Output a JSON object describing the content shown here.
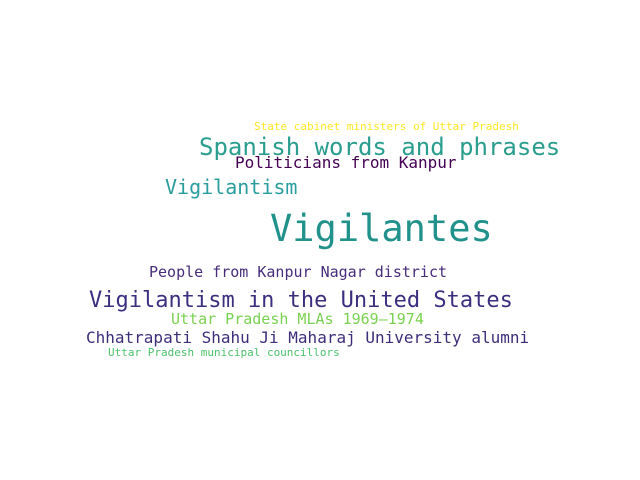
{
  "words": [
    {
      "text": "State cabinet ministers of Uttar Pradesh",
      "color": "#fde725"
    },
    {
      "text": "Spanish words and phrases",
      "color": "#2a9d8f"
    },
    {
      "text": "Politicians from Kanpur",
      "color": "#440154"
    },
    {
      "text": "Vigilantism",
      "color": "#2a9d9f"
    },
    {
      "text": "Vigilantes",
      "color": "#21918c"
    },
    {
      "text": "People from Kanpur Nagar district",
      "color": "#472d7b"
    },
    {
      "text": "Vigilantism in the United States",
      "color": "#3b2f7f"
    },
    {
      "text": "Uttar Pradesh MLAs 1969–1974",
      "color": "#7ad151"
    },
    {
      "text": "Chhatrapati Shahu Ji Maharaj University alumni",
      "color": "#3e2d7a"
    },
    {
      "text": "Uttar Pradesh municipal councillors",
      "color": "#4cc26c"
    }
  ]
}
